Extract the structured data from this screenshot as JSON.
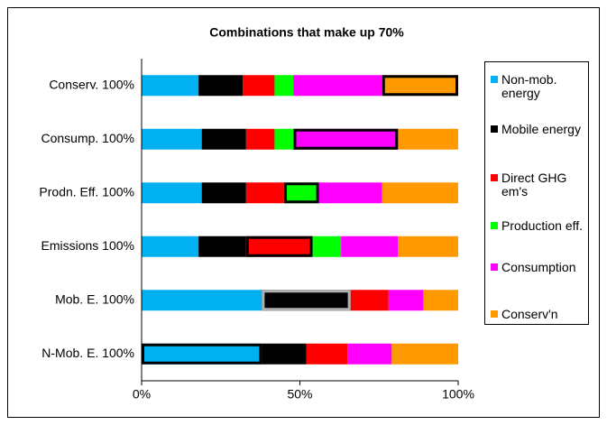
{
  "chart_data": {
    "type": "stacked_barh",
    "title": "Combinations that make up 70%",
    "categories": [
      "Conserv. 100%",
      "Consump. 100%",
      "Prodn. Eff. 100%",
      "Emissions 100%",
      "Mob. E. 100%",
      "N-Mob. E. 100%"
    ],
    "series": [
      {
        "name": "Non-mob. energy",
        "color": "#00b0f0",
        "values": [
          18,
          19,
          19,
          18,
          38,
          38
        ]
      },
      {
        "name": "Mobile energy",
        "color": "#000000",
        "values": [
          14,
          14,
          14,
          15,
          28,
          14
        ]
      },
      {
        "name": "Direct GHG em's",
        "color": "#ff0000",
        "values": [
          10,
          9,
          12,
          21,
          12,
          13
        ]
      },
      {
        "name": "Production eff.",
        "color": "#00ff00",
        "values": [
          6,
          6,
          11,
          9,
          0,
          0
        ]
      },
      {
        "name": "Consumption",
        "color": "#ff00ff",
        "values": [
          28,
          33,
          20,
          18,
          11,
          14
        ]
      },
      {
        "name": "Conserv'n",
        "color": "#ff9900",
        "values": [
          24,
          19,
          24,
          19,
          11,
          21
        ]
      }
    ],
    "highlight_series": [
      5,
      4,
      3,
      2,
      1,
      0
    ],
    "highlight_colors": [
      "#000000",
      "#000000",
      "#000000",
      "#000000",
      "#b0b0b0",
      "#000000"
    ],
    "xlim": [
      0,
      100
    ],
    "xticks": [
      {
        "value": 0,
        "label": "0%"
      },
      {
        "value": 50,
        "label": "50%"
      },
      {
        "value": 100,
        "label": "100%"
      }
    ],
    "grid": false
  }
}
